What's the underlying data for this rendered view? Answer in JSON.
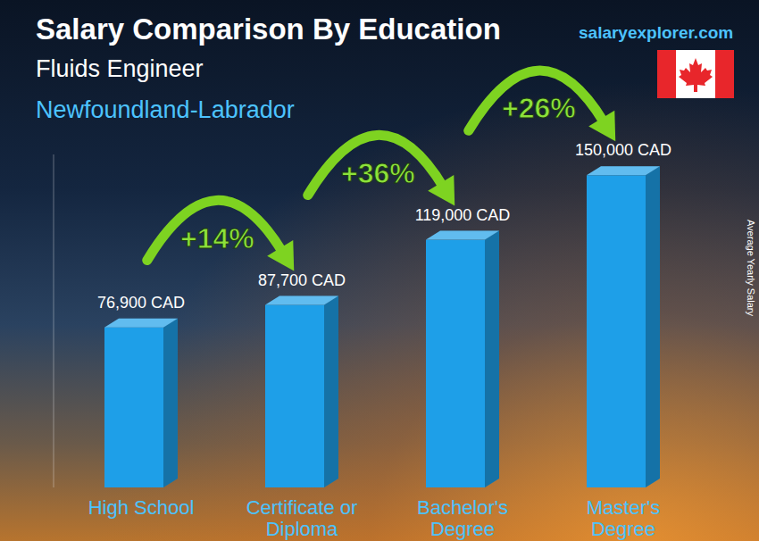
{
  "chart_data": {
    "type": "bar",
    "title": "Salary Comparison By Education",
    "subtitles": [
      "Fluids Engineer",
      "Newfoundland-Labrador"
    ],
    "source": "salaryexplorer.com",
    "ylabel": "Average Yearly Salary",
    "categories": [
      "High School",
      "Certificate or Diploma",
      "Bachelor's Degree",
      "Master's Degree"
    ],
    "values": [
      76900,
      87700,
      119000,
      150000
    ],
    "value_labels": [
      "76,900 CAD",
      "87,700 CAD",
      "119,000 CAD",
      "150,000 CAD"
    ],
    "data_labels": true,
    "color": "#1e9fe8",
    "ylim": [
      0,
      160000
    ],
    "yticks": [],
    "tick_labels": "x",
    "grid": false,
    "annotations": [
      "+14%",
      "+36%",
      "+26%"
    ]
  }
}
